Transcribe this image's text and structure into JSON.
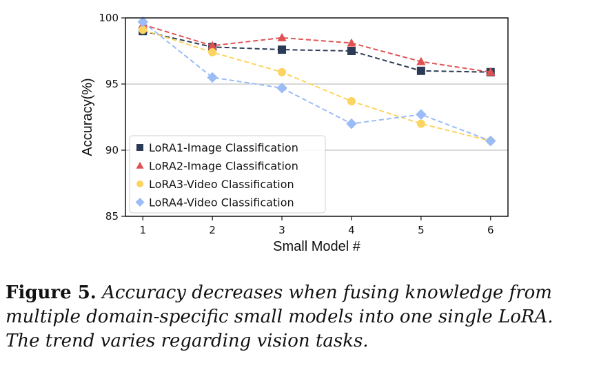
{
  "chart_data": {
    "type": "line",
    "title": "",
    "xlabel": "Small Model #",
    "ylabel": "Accuracy(%)",
    "x": [
      1,
      2,
      3,
      4,
      5,
      6
    ],
    "x_tick_labels": [
      "1",
      "2",
      "3",
      "4",
      "5",
      "6"
    ],
    "y_ticks": [
      85,
      90,
      95,
      100
    ],
    "y_tick_labels": [
      "85",
      "90",
      "95",
      "100"
    ],
    "xlim": [
      0.75,
      6.25
    ],
    "ylim": [
      85,
      100
    ],
    "grid": "horizontal",
    "legend_position": "lower-left",
    "series": [
      {
        "name": "LoRA1-Image Classification",
        "marker": "square",
        "color": "#2b3a55",
        "values": [
          99.0,
          97.8,
          97.6,
          97.5,
          96.0,
          95.9
        ]
      },
      {
        "name": "LoRA2-Image Classification",
        "marker": "triangle",
        "color": "#e05252",
        "values": [
          99.5,
          97.9,
          98.5,
          98.1,
          96.7,
          95.9
        ]
      },
      {
        "name": "LoRA3-Video Classification",
        "marker": "circle",
        "color": "#fdd45f",
        "values": [
          99.1,
          97.4,
          95.9,
          93.7,
          92.0,
          90.7
        ]
      },
      {
        "name": "LoRA4-Video Classification",
        "marker": "diamond",
        "color": "#9bbcf7",
        "values": [
          99.7,
          95.5,
          94.7,
          92.0,
          92.7,
          90.7
        ]
      }
    ]
  },
  "caption": {
    "label": "Figure 5.",
    "text": "Accuracy decreases when fusing knowledge from multiple domain-specific small models into one single LoRA. The trend varies regarding vision tasks."
  }
}
